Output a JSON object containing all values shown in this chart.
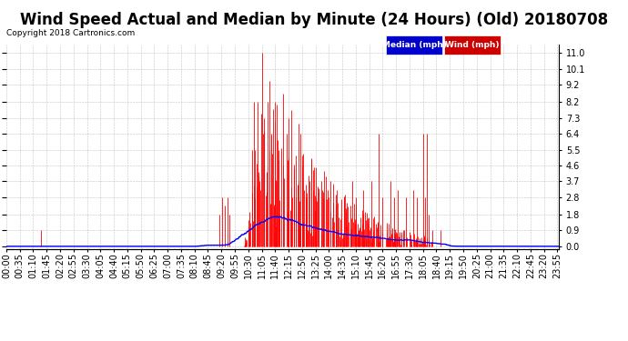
{
  "title": "Wind Speed Actual and Median by Minute (24 Hours) (Old) 20180708",
  "copyright": "Copyright 2018 Cartronics.com",
  "legend_median_label": "Median (mph)",
  "legend_wind_label": "Wind (mph)",
  "legend_median_color": "#0000ff",
  "legend_median_bg": "#0000cc",
  "legend_wind_color": "#ff0000",
  "legend_wind_bg": "#cc0000",
  "yticks": [
    0.0,
    0.9,
    1.8,
    2.8,
    3.7,
    4.6,
    5.5,
    6.4,
    7.3,
    8.2,
    9.2,
    10.1,
    11.0
  ],
  "ylim": [
    -0.15,
    11.5
  ],
  "background_color": "#ffffff",
  "plot_bg_color": "#ffffff",
  "grid_color": "#aaaaaa",
  "title_fontsize": 12,
  "tick_fontsize": 7,
  "num_minutes": 1440,
  "xtick_step": 35,
  "wind_linewidth": 0.6,
  "median_linewidth": 1.0
}
